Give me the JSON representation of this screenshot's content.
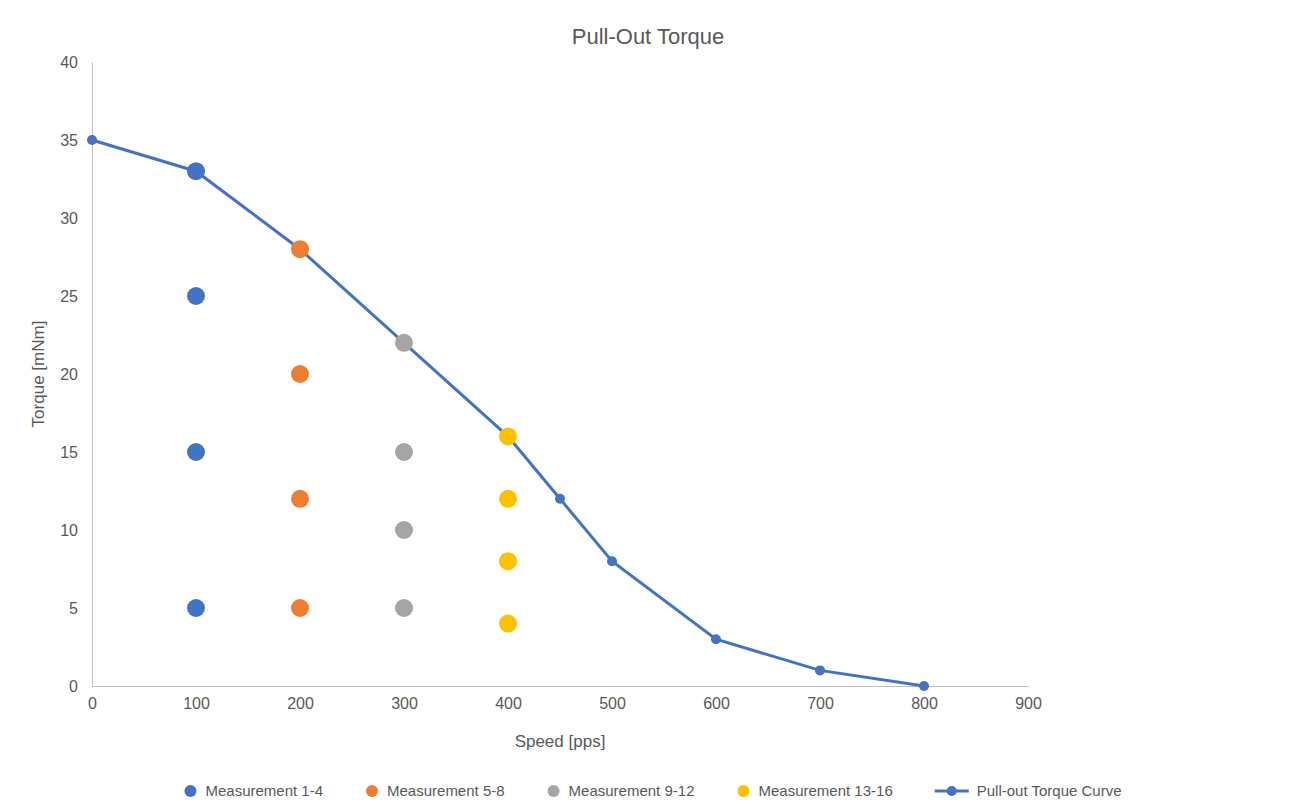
{
  "chart_data": {
    "type": "scatter",
    "title": "Pull-Out Torque",
    "x_label": "Speed [pps]",
    "y_label": "Torque [mNm]",
    "xlim": [
      0,
      900
    ],
    "xticks": [
      0,
      100,
      200,
      300,
      400,
      500,
      600,
      700,
      800,
      900
    ],
    "ylim": [
      0,
      40
    ],
    "yticks": [
      0,
      5,
      10,
      15,
      20,
      25,
      30,
      35,
      40
    ],
    "grid": false,
    "legend": "bottom",
    "series": [
      {
        "name": "Measurement 1-4",
        "color": "#4472c4",
        "type": "scatter",
        "marker": "circle",
        "x": [
          100,
          100,
          100,
          100
        ],
        "values": [
          33,
          25,
          15,
          5
        ]
      },
      {
        "name": "Measurement 5-8",
        "color": "#ed7d31",
        "type": "scatter",
        "marker": "circle",
        "x": [
          200,
          200,
          200,
          200
        ],
        "values": [
          28,
          20,
          12,
          5
        ]
      },
      {
        "name": "Measurement 9-12",
        "color": "#a5a5a5",
        "type": "scatter",
        "marker": "circle",
        "x": [
          300,
          300,
          300,
          300
        ],
        "values": [
          22,
          15,
          10,
          5
        ]
      },
      {
        "name": "Measurement 13-16",
        "color": "#ffc000",
        "type": "scatter",
        "marker": "circle",
        "x": [
          400,
          400,
          400,
          400
        ],
        "values": [
          16,
          12,
          8,
          4
        ]
      },
      {
        "name": "Pull-out Torque Curve",
        "color": "#4472c4",
        "type": "line",
        "marker": "circle",
        "line_style": "solid",
        "x": [
          0,
          100,
          200,
          300,
          400,
          450,
          500,
          600,
          700,
          800
        ],
        "values": [
          35,
          33,
          28,
          22,
          16,
          12,
          8,
          3,
          1,
          0
        ]
      }
    ]
  }
}
